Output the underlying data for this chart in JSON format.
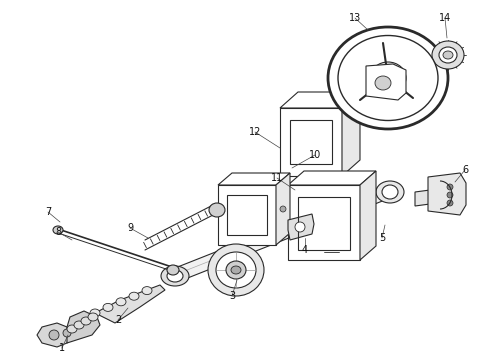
{
  "bg_color": "#ffffff",
  "line_color": "#2a2a2a",
  "figsize": [
    4.9,
    3.6
  ],
  "dpi": 100,
  "label_fontsize": 7,
  "lw": 0.8
}
